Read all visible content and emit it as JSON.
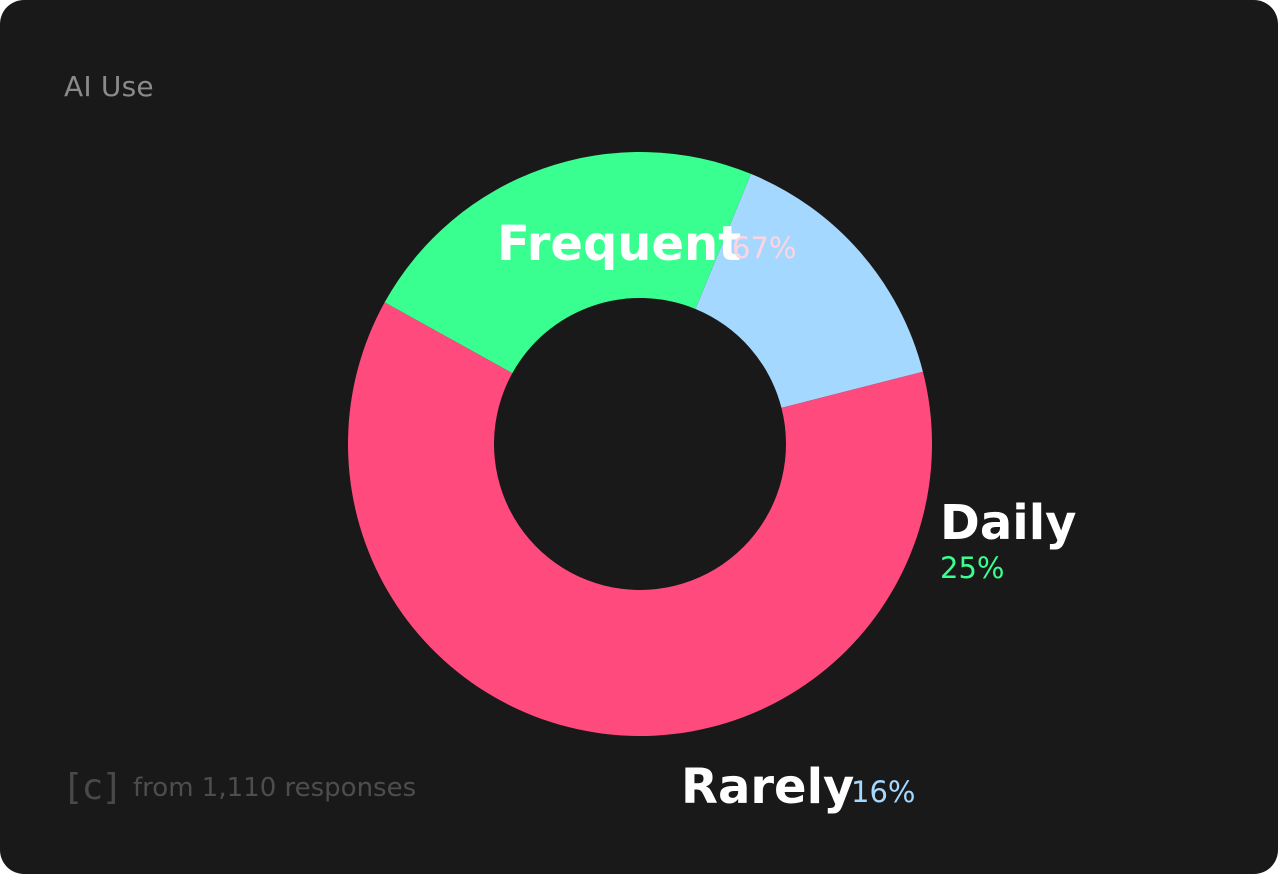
{
  "header": {
    "title": "AI Use"
  },
  "footer": {
    "logo_text": "[c]",
    "note": "from 1,110 responses"
  },
  "colors": {
    "background": "#1a191a",
    "frequent": "#ff4a7e",
    "daily": "#38ff8f",
    "rarely": "#a4d8ff"
  },
  "chart_data": {
    "type": "pie",
    "style": "donut",
    "title": "AI Use",
    "slices": [
      {
        "label": "Frequent",
        "value": 67,
        "value_label": "67%",
        "color": "#ff4a7e",
        "pct_color": "#ffd4e0"
      },
      {
        "label": "Daily",
        "value": 25,
        "value_label": "25%",
        "color": "#38ff8f",
        "pct_color": "#38ff8f"
      },
      {
        "label": "Rarely",
        "value": 16,
        "value_label": "16%",
        "color": "#a4d8ff",
        "pct_color": "#a4d8ff"
      }
    ]
  }
}
